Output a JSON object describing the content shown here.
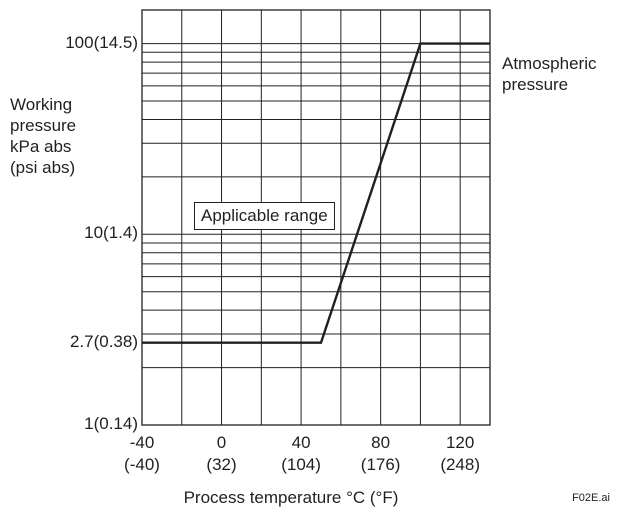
{
  "chart_data": {
    "type": "line",
    "title": "",
    "xlabel": "Process temperature °C (°F)",
    "ylabel_lines": [
      "Working",
      "pressure",
      "kPa abs",
      "(psi abs)"
    ],
    "x_scale": "linear",
    "y_scale": "log",
    "xlim": [
      -40,
      135
    ],
    "ylim": [
      1,
      150
    ],
    "x_ticks": [
      {
        "value": -40,
        "label": "-40",
        "sub": "(-40)"
      },
      {
        "value": 0,
        "label": "0",
        "sub": "(32)"
      },
      {
        "value": 40,
        "label": "40",
        "sub": "(104)"
      },
      {
        "value": 80,
        "label": "80",
        "sub": "(176)"
      },
      {
        "value": 120,
        "label": "120",
        "sub": "(248)"
      }
    ],
    "y_ticks": [
      {
        "value": 1,
        "label": "1(0.14)"
      },
      {
        "value": 2.7,
        "label": "2.7(0.38)"
      },
      {
        "value": 10,
        "label": "10(1.4)"
      },
      {
        "value": 100,
        "label": "100(14.5)"
      }
    ],
    "x_gridlines": [
      -40,
      -20,
      0,
      20,
      40,
      60,
      80,
      100,
      120
    ],
    "y_gridlines": [
      1,
      2,
      3,
      4,
      5,
      6,
      7,
      8,
      9,
      10,
      20,
      30,
      40,
      50,
      60,
      70,
      80,
      90,
      100
    ],
    "grid": true,
    "series": [
      {
        "name": "",
        "x": [
          -40,
          50,
          100,
          135
        ],
        "y": [
          2.7,
          2.7,
          100,
          100
        ]
      }
    ],
    "annotations": {
      "applicable_range": "Applicable range",
      "atmospheric": [
        "Atmospheric",
        "pressure"
      ]
    }
  },
  "figure_id": "F02E.ai"
}
